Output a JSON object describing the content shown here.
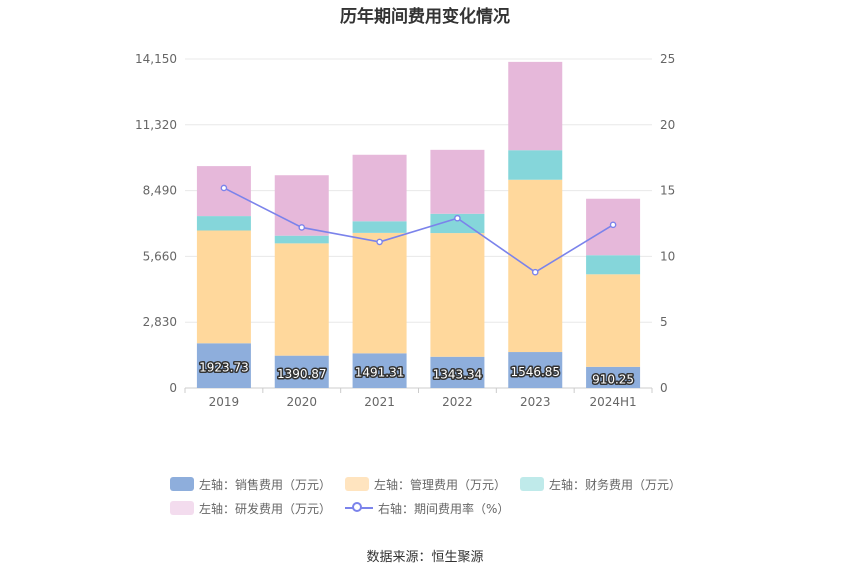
{
  "chart_title": "历年期间费用变化情况",
  "source_text": "数据来源：恒生聚源",
  "chart_data": {
    "type": "bar",
    "stacked": true,
    "title": "历年期间费用变化情况",
    "categories": [
      "2019",
      "2020",
      "2021",
      "2022",
      "2023",
      "2024H1"
    ],
    "left_axis": {
      "ylim": [
        0,
        14150
      ],
      "ticks": [
        "0",
        "2,830",
        "5,660",
        "8,490",
        "11,320",
        "14,150"
      ],
      "tick_values": [
        0,
        2830,
        5660,
        8490,
        11320,
        14150
      ]
    },
    "right_axis": {
      "ylim": [
        0,
        25
      ],
      "ticks": [
        "0",
        "5",
        "10",
        "15",
        "20",
        "25"
      ],
      "tick_values": [
        0,
        5,
        10,
        15,
        20,
        25
      ]
    },
    "series": [
      {
        "name": "左轴：销售费用（万元）",
        "axis": "left",
        "color": "#8eaedc",
        "values": [
          1923.73,
          1390.87,
          1491.31,
          1343.34,
          1546.85,
          910.25
        ],
        "labels": [
          "1923.73",
          "1390.87",
          "1491.31",
          "1343.34",
          "1546.85",
          "910.25"
        ]
      },
      {
        "name": "左轴：管理费用（万元）",
        "axis": "left",
        "color": "#ffd89c",
        "values": [
          4850,
          4830,
          5180,
          5320,
          7410,
          3980
        ]
      },
      {
        "name": "左轴：财务费用（万元）",
        "axis": "left",
        "color": "#85d6da",
        "values": [
          620,
          330,
          500,
          830,
          1270,
          820
        ]
      },
      {
        "name": "左轴：研发费用（万元）",
        "axis": "left",
        "color": "#e6b8da",
        "values": [
          2150,
          2600,
          2860,
          2750,
          3800,
          2430
        ]
      },
      {
        "name": "右轴：期间费用率（%）",
        "axis": "right",
        "type": "line",
        "color": "#7b83eb",
        "values": [
          15.2,
          12.2,
          11.1,
          12.9,
          8.8,
          12.4
        ]
      }
    ],
    "grid": true
  },
  "legend": [
    {
      "label": "左轴：销售费用（万元）",
      "color": "#8eaedc"
    },
    {
      "label": "左轴：管理费用（万元）",
      "color": "#ffe4bf"
    },
    {
      "label": "左轴：财务费用（万元）",
      "color": "#bfeaea"
    },
    {
      "label": "左轴：研发费用（万元）",
      "color": "#f3dcee"
    },
    {
      "label": "右轴：期间费用率（%）",
      "color": "#7b83eb"
    }
  ]
}
